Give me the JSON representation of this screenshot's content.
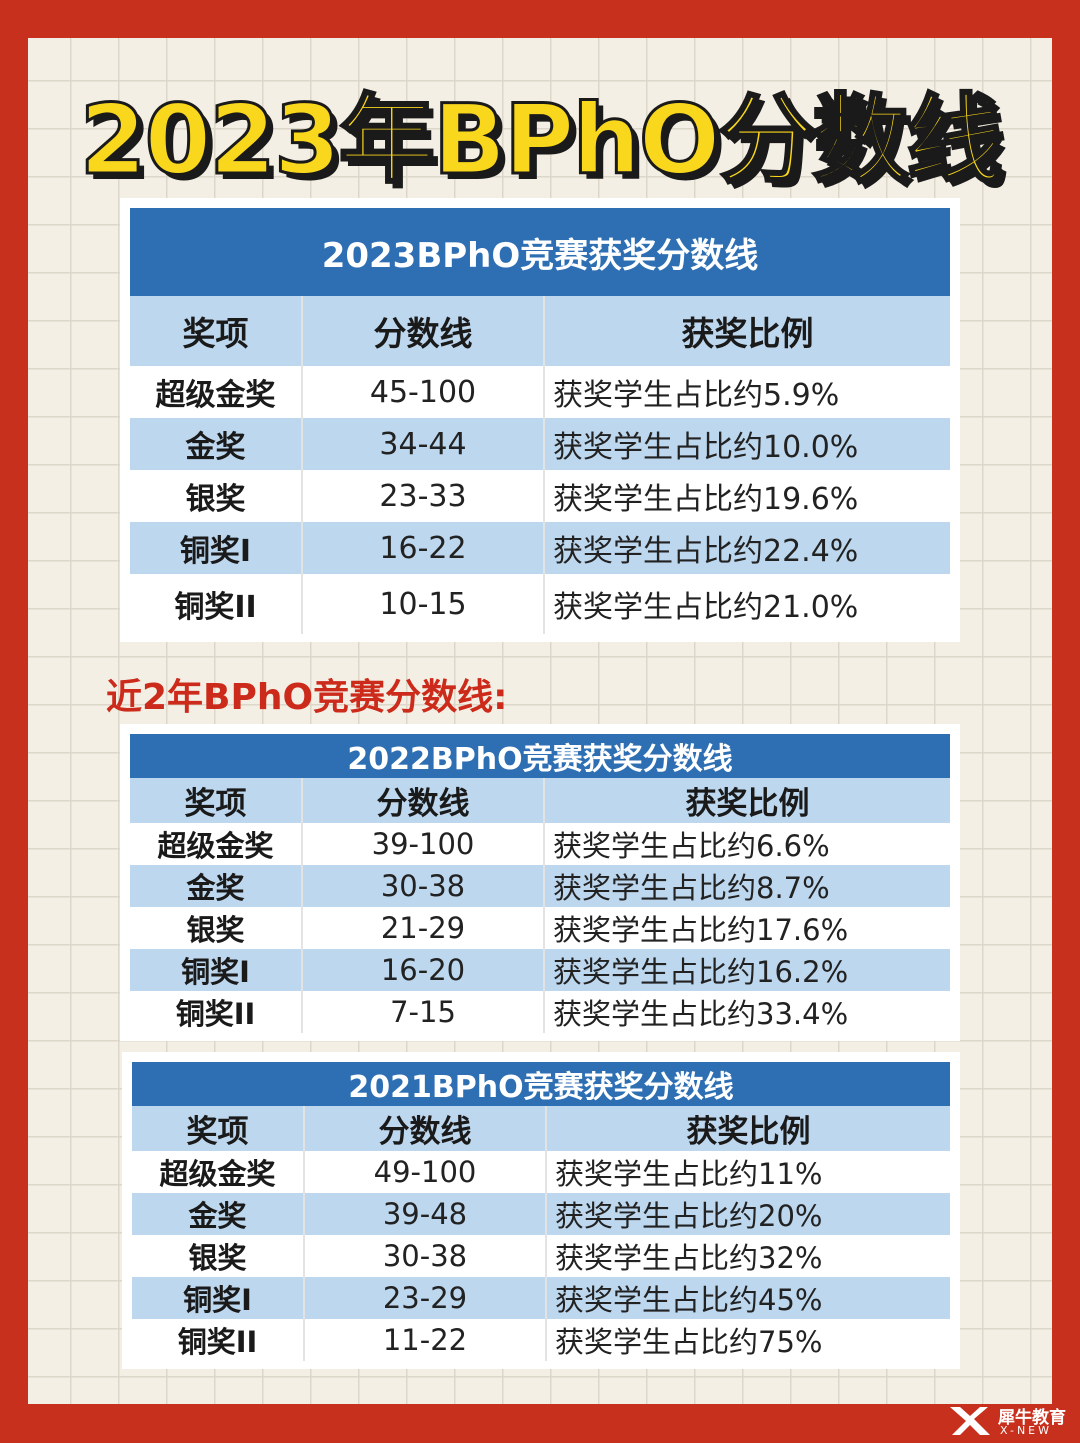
{
  "title": "2023年BPhO分数线",
  "section_heading": "近2年BPhO竞赛分数线:",
  "columns": [
    "奖项",
    "分数线",
    "获奖比例"
  ],
  "tables": [
    {
      "caption": "2023BPhO竞赛获奖分数线",
      "rows": [
        {
          "award": "超级金奖",
          "score": "45-100",
          "ratio": "获奖学生占比约5.9%"
        },
        {
          "award": "金奖",
          "score": "34-44",
          "ratio": "获奖学生占比约10.0%"
        },
        {
          "award": "银奖",
          "score": "23-33",
          "ratio": "获奖学生占比约19.6%"
        },
        {
          "award": "铜奖I",
          "score": "16-22",
          "ratio": "获奖学生占比约22.4%"
        },
        {
          "award": "铜奖II",
          "score": "10-15",
          "ratio": "获奖学生占比约21.0%"
        }
      ]
    },
    {
      "caption": "2022BPhO竞赛获奖分数线",
      "rows": [
        {
          "award": "超级金奖",
          "score": "39-100",
          "ratio": "获奖学生占比约6.6%"
        },
        {
          "award": "金奖",
          "score": "30-38",
          "ratio": "获奖学生占比约8.7%"
        },
        {
          "award": "银奖",
          "score": "21-29",
          "ratio": "获奖学生占比约17.6%"
        },
        {
          "award": "铜奖I",
          "score": "16-20",
          "ratio": "获奖学生占比约16.2%"
        },
        {
          "award": "铜奖II",
          "score": "7-15",
          "ratio": "获奖学生占比约33.4%"
        }
      ]
    },
    {
      "caption": "2021BPhO竞赛获奖分数线",
      "rows": [
        {
          "award": "超级金奖",
          "score": "49-100",
          "ratio": "获奖学生占比约11%"
        },
        {
          "award": "金奖",
          "score": "39-48",
          "ratio": "获奖学生占比约20%"
        },
        {
          "award": "银奖",
          "score": "30-38",
          "ratio": "获奖学生占比约32%"
        },
        {
          "award": "铜奖I",
          "score": "23-29",
          "ratio": "获奖学生占比约45%"
        },
        {
          "award": "铜奖II",
          "score": "11-22",
          "ratio": "获奖学生占比约75%"
        }
      ]
    }
  ],
  "watermark": {
    "name": "犀牛教育",
    "sub": "X-NEW",
    "logo": "x-logo-icon"
  },
  "colors": {
    "background": "#c8301e",
    "title": "#f9d71c",
    "caption": "#2e6fb4",
    "row_alt": "#bdd7ee",
    "heading": "#cc2a1a"
  }
}
